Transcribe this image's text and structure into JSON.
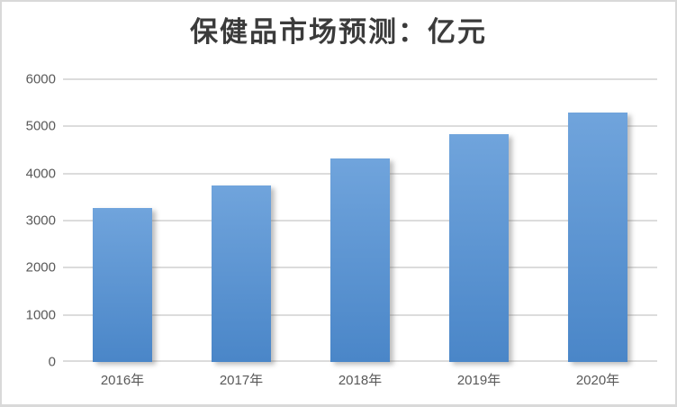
{
  "chart_data": {
    "type": "bar",
    "title": "保健品市场预测：亿元",
    "categories": [
      "2016年",
      "2017年",
      "2018年",
      "2019年",
      "2020年"
    ],
    "values": [
      3260,
      3745,
      4315,
      4840,
      5290
    ],
    "xlabel": "",
    "ylabel": "",
    "ylim": [
      0,
      6000
    ],
    "yticks": [
      0,
      1000,
      2000,
      3000,
      4000,
      5000,
      6000
    ],
    "grid": true,
    "legend_position": "none",
    "colors": {
      "bar_gradient_top": "#70a4dc",
      "bar_gradient_bottom": "#4a86c8",
      "gridline": "#dcdcdc",
      "axis_label": "#595959",
      "title": "#3b3b3b",
      "frame_border": "#d9d9d9",
      "background": "#ffffff"
    }
  }
}
